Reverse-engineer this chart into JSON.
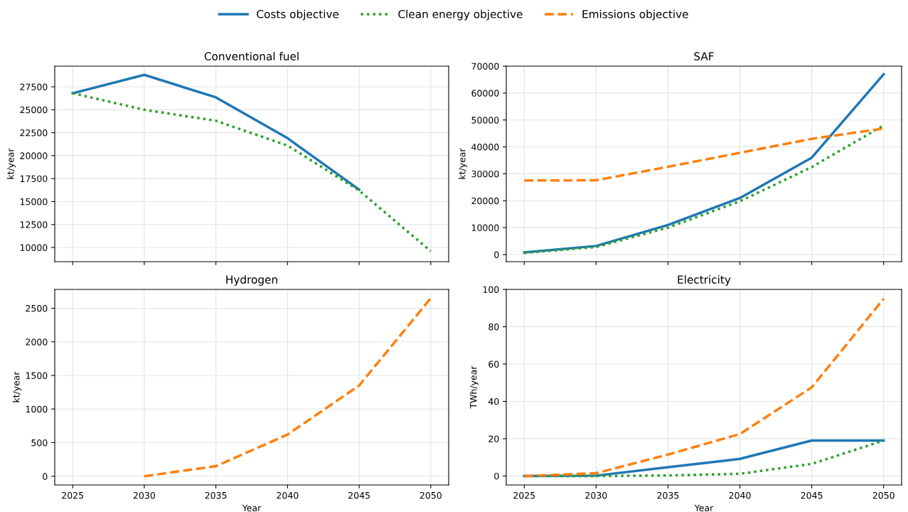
{
  "chart_data": [
    {
      "type": "line",
      "title": "Conventional fuel",
      "ylabel": "kt/year",
      "x": [
        2025,
        2030,
        2035,
        2040,
        2045,
        2050
      ],
      "xlim": [
        2023.75,
        2051.25
      ],
      "xticks": [
        2025,
        2030,
        2035,
        2040,
        2045,
        2050
      ],
      "ylim": [
        8450,
        29750
      ],
      "yticks": [
        10000,
        12500,
        15000,
        17500,
        20000,
        22500,
        25000,
        27500
      ],
      "grid": true,
      "legend": "top",
      "tick_labels": "y",
      "series": [
        {
          "name": "Costs objective",
          "color": "#1f77b4",
          "line_style": "solid",
          "values": [
            26800,
            28800,
            26350,
            21900,
            16300,
            null
          ]
        },
        {
          "name": "Clean energy objective",
          "color": "#2ca02c",
          "line_style": "dotted",
          "values": [
            26800,
            25000,
            23800,
            21100,
            16200,
            9600
          ]
        }
      ]
    },
    {
      "type": "line",
      "title": "SAF",
      "ylabel": "kt/year",
      "x": [
        2025,
        2030,
        2035,
        2040,
        2045,
        2050
      ],
      "xlim": [
        2023.75,
        2051.25
      ],
      "xticks": [
        2025,
        2030,
        2035,
        2040,
        2045,
        2050
      ],
      "ylim": [
        -2650,
        70000
      ],
      "yticks": [
        0,
        10000,
        20000,
        30000,
        40000,
        50000,
        60000,
        70000
      ],
      "grid": true,
      "tick_labels": "y",
      "series": [
        {
          "name": "Costs objective",
          "color": "#1f77b4",
          "line_style": "solid",
          "values": [
            800,
            3200,
            11000,
            21000,
            36000,
            67000
          ]
        },
        {
          "name": "Clean energy objective",
          "color": "#2ca02c",
          "line_style": "dotted",
          "values": [
            600,
            2800,
            10000,
            19800,
            32500,
            48000
          ]
        },
        {
          "name": "Emissions objective",
          "color": "#ff7f0e",
          "line_style": "dashed",
          "values": [
            27500,
            27600,
            32600,
            37800,
            43000,
            46800
          ]
        }
      ]
    },
    {
      "type": "line",
      "title": "Hydrogen",
      "ylabel": "kt/year",
      "xlabel": "Year",
      "xlim": [
        2023.75,
        2051.25
      ],
      "xticks": [
        2025,
        2030,
        2035,
        2040,
        2045,
        2050
      ],
      "ylim": [
        -130,
        2780
      ],
      "yticks": [
        0,
        500,
        1000,
        1500,
        2000,
        2500
      ],
      "grid": true,
      "series": [
        {
          "name": "Emissions objective",
          "color": "#ff7f0e",
          "line_style": "dashed",
          "x": [
            2030,
            2035,
            2040,
            2045,
            2050
          ],
          "values": [
            0,
            150,
            620,
            1350,
            2650
          ]
        }
      ]
    },
    {
      "type": "line",
      "title": "Electricity",
      "ylabel": "TWh/year",
      "xlabel": "Year",
      "x": [
        2025,
        2030,
        2035,
        2040,
        2045,
        2050
      ],
      "xlim": [
        2023.75,
        2051.25
      ],
      "xticks": [
        2025,
        2030,
        2035,
        2040,
        2045,
        2050
      ],
      "ylim": [
        -4.8,
        100
      ],
      "yticks": [
        0,
        20,
        40,
        60,
        80,
        100
      ],
      "grid": true,
      "series": [
        {
          "name": "Costs objective",
          "color": "#1f77b4",
          "line_style": "solid",
          "values": [
            0,
            0.2,
            4.7,
            9.2,
            19,
            19
          ]
        },
        {
          "name": "Clean energy objective",
          "color": "#2ca02c",
          "line_style": "dotted",
          "values": [
            0,
            0,
            0.3,
            1.2,
            6.5,
            19
          ]
        },
        {
          "name": "Emissions objective",
          "color": "#ff7f0e",
          "line_style": "dashed",
          "values": [
            0,
            1.5,
            11.5,
            22.5,
            47.5,
            95
          ]
        }
      ]
    }
  ]
}
